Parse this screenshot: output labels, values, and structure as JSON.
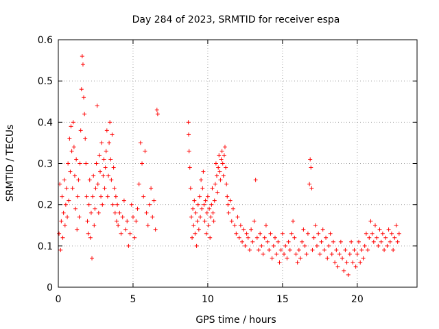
{
  "chart_data": {
    "type": "scatter",
    "title": "Day 284 of 2023, SRMTID for receiver espa",
    "xlabel": "GPS time / hours",
    "ylabel": "SRMTID / TECUs",
    "xlim": [
      0,
      24
    ],
    "ylim": [
      0,
      0.6
    ],
    "x_ticks": [
      0,
      5,
      10,
      15,
      20
    ],
    "x_tick_labels": [
      "0",
      "5",
      "10",
      "15",
      "20"
    ],
    "y_ticks": [
      0,
      0.1,
      0.2,
      0.3,
      0.4,
      0.5,
      0.6
    ],
    "y_tick_labels": [
      "0",
      "0.1",
      "0.2",
      "0.3",
      "0.4",
      "0.5",
      "0.6"
    ],
    "grid": true,
    "marker": "+",
    "color": "#ff0000",
    "series": [
      {
        "name": "SRMTID",
        "points": [
          [
            0.05,
            0.13
          ],
          [
            0.1,
            0.25
          ],
          [
            0.15,
            0.09
          ],
          [
            0.2,
            0.16
          ],
          [
            0.25,
            0.22
          ],
          [
            0.3,
            0.12
          ],
          [
            0.35,
            0.18
          ],
          [
            0.4,
            0.26
          ],
          [
            0.45,
            0.15
          ],
          [
            0.5,
            0.2
          ],
          [
            0.55,
            0.24
          ],
          [
            0.6,
            0.17
          ],
          [
            0.65,
            0.3
          ],
          [
            0.7,
            0.21
          ],
          [
            0.75,
            0.36
          ],
          [
            0.8,
            0.28
          ],
          [
            0.85,
            0.39
          ],
          [
            0.9,
            0.33
          ],
          [
            0.95,
            0.24
          ],
          [
            1.0,
            0.4
          ],
          [
            1.05,
            0.34
          ],
          [
            1.1,
            0.27
          ],
          [
            1.15,
            0.19
          ],
          [
            1.2,
            0.31
          ],
          [
            1.25,
            0.14
          ],
          [
            1.3,
            0.22
          ],
          [
            1.35,
            0.26
          ],
          [
            1.4,
            0.17
          ],
          [
            1.45,
            0.3
          ],
          [
            1.5,
            0.38
          ],
          [
            1.55,
            0.48
          ],
          [
            1.6,
            0.56
          ],
          [
            1.65,
            0.54
          ],
          [
            1.7,
            0.46
          ],
          [
            1.75,
            0.42
          ],
          [
            1.8,
            0.36
          ],
          [
            1.85,
            0.3
          ],
          [
            1.9,
            0.22
          ],
          [
            1.95,
            0.16
          ],
          [
            2.0,
            0.13
          ],
          [
            2.05,
            0.2
          ],
          [
            2.1,
            0.26
          ],
          [
            2.15,
            0.12
          ],
          [
            2.2,
            0.18
          ],
          [
            2.25,
            0.07
          ],
          [
            2.3,
            0.22
          ],
          [
            2.35,
            0.27
          ],
          [
            2.4,
            0.15
          ],
          [
            2.45,
            0.19
          ],
          [
            2.5,
            0.24
          ],
          [
            2.55,
            0.3
          ],
          [
            2.6,
            0.44
          ],
          [
            2.65,
            0.25
          ],
          [
            2.7,
            0.18
          ],
          [
            2.75,
            0.32
          ],
          [
            2.8,
            0.28
          ],
          [
            2.85,
            0.22
          ],
          [
            2.9,
            0.35
          ],
          [
            2.95,
            0.2
          ],
          [
            3.0,
            0.27
          ],
          [
            3.05,
            0.31
          ],
          [
            3.1,
            0.24
          ],
          [
            3.15,
            0.29
          ],
          [
            3.2,
            0.33
          ],
          [
            3.25,
            0.38
          ],
          [
            3.3,
            0.22
          ],
          [
            3.35,
            0.27
          ],
          [
            3.4,
            0.35
          ],
          [
            3.45,
            0.4
          ],
          [
            3.5,
            0.31
          ],
          [
            3.55,
            0.26
          ],
          [
            3.6,
            0.37
          ],
          [
            3.65,
            0.2
          ],
          [
            3.7,
            0.29
          ],
          [
            3.75,
            0.24
          ],
          [
            3.8,
            0.18
          ],
          [
            3.85,
            0.22
          ],
          [
            3.9,
            0.16
          ],
          [
            3.95,
            0.2
          ],
          [
            4.0,
            0.15
          ],
          [
            4.1,
            0.18
          ],
          [
            4.2,
            0.13
          ],
          [
            4.3,
            0.17
          ],
          [
            4.4,
            0.21
          ],
          [
            4.5,
            0.14
          ],
          [
            4.6,
            0.16
          ],
          [
            4.7,
            0.1
          ],
          [
            4.8,
            0.13
          ],
          [
            4.9,
            0.2
          ],
          [
            5.0,
            0.17
          ],
          [
            5.1,
            0.12
          ],
          [
            5.2,
            0.16
          ],
          [
            5.3,
            0.19
          ],
          [
            5.4,
            0.25
          ],
          [
            5.5,
            0.35
          ],
          [
            5.6,
            0.3
          ],
          [
            5.7,
            0.22
          ],
          [
            5.8,
            0.33
          ],
          [
            5.9,
            0.18
          ],
          [
            6.0,
            0.15
          ],
          [
            6.1,
            0.2
          ],
          [
            6.2,
            0.24
          ],
          [
            6.3,
            0.17
          ],
          [
            6.4,
            0.21
          ],
          [
            6.5,
            0.14
          ],
          [
            6.6,
            0.43
          ],
          [
            6.65,
            0.42
          ],
          [
            8.7,
            0.4
          ],
          [
            8.72,
            0.37
          ],
          [
            8.75,
            0.33
          ],
          [
            8.8,
            0.29
          ],
          [
            8.85,
            0.24
          ],
          [
            8.9,
            0.17
          ],
          [
            8.95,
            0.12
          ],
          [
            9.0,
            0.19
          ],
          [
            9.05,
            0.15
          ],
          [
            9.1,
            0.21
          ],
          [
            9.15,
            0.13
          ],
          [
            9.2,
            0.18
          ],
          [
            9.25,
            0.1
          ],
          [
            9.3,
            0.16
          ],
          [
            9.35,
            0.2
          ],
          [
            9.4,
            0.14
          ],
          [
            9.45,
            0.22
          ],
          [
            9.5,
            0.17
          ],
          [
            9.55,
            0.26
          ],
          [
            9.6,
            0.19
          ],
          [
            9.65,
            0.24
          ],
          [
            9.7,
            0.28
          ],
          [
            9.75,
            0.2
          ],
          [
            9.8,
            0.16
          ],
          [
            9.85,
            0.21
          ],
          [
            9.9,
            0.13
          ],
          [
            9.95,
            0.18
          ],
          [
            10.0,
            0.22
          ],
          [
            10.05,
            0.15
          ],
          [
            10.1,
            0.19
          ],
          [
            10.15,
            0.12
          ],
          [
            10.2,
            0.17
          ],
          [
            10.25,
            0.2
          ],
          [
            10.3,
            0.24
          ],
          [
            10.35,
            0.18
          ],
          [
            10.4,
            0.16
          ],
          [
            10.45,
            0.21
          ],
          [
            10.5,
            0.25
          ],
          [
            10.55,
            0.3
          ],
          [
            10.6,
            0.27
          ],
          [
            10.65,
            0.23
          ],
          [
            10.7,
            0.29
          ],
          [
            10.75,
            0.32
          ],
          [
            10.8,
            0.28
          ],
          [
            10.85,
            0.26
          ],
          [
            10.9,
            0.31
          ],
          [
            10.95,
            0.33
          ],
          [
            11.0,
            0.3
          ],
          [
            11.05,
            0.27
          ],
          [
            11.1,
            0.32
          ],
          [
            11.15,
            0.34
          ],
          [
            11.2,
            0.29
          ],
          [
            11.25,
            0.25
          ],
          [
            11.3,
            0.22
          ],
          [
            11.35,
            0.2
          ],
          [
            11.4,
            0.18
          ],
          [
            11.5,
            0.21
          ],
          [
            11.6,
            0.16
          ],
          [
            11.7,
            0.19
          ],
          [
            11.8,
            0.15
          ],
          [
            11.9,
            0.13
          ],
          [
            12.0,
            0.17
          ],
          [
            12.1,
            0.12
          ],
          [
            12.2,
            0.15
          ],
          [
            12.3,
            0.11
          ],
          [
            12.4,
            0.14
          ],
          [
            12.5,
            0.1
          ],
          [
            12.6,
            0.13
          ],
          [
            12.7,
            0.12
          ],
          [
            12.8,
            0.09
          ],
          [
            12.9,
            0.14
          ],
          [
            13.0,
            0.11
          ],
          [
            13.1,
            0.16
          ],
          [
            13.2,
            0.26
          ],
          [
            13.3,
            0.12
          ],
          [
            13.4,
            0.09
          ],
          [
            13.5,
            0.13
          ],
          [
            13.6,
            0.1
          ],
          [
            13.7,
            0.08
          ],
          [
            13.8,
            0.12
          ],
          [
            13.9,
            0.15
          ],
          [
            14.0,
            0.11
          ],
          [
            14.1,
            0.09
          ],
          [
            14.2,
            0.13
          ],
          [
            14.3,
            0.07
          ],
          [
            14.4,
            0.1
          ],
          [
            14.5,
            0.12
          ],
          [
            14.6,
            0.08
          ],
          [
            14.7,
            0.11
          ],
          [
            14.8,
            0.06
          ],
          [
            14.9,
            0.09
          ],
          [
            15.0,
            0.13
          ],
          [
            15.1,
            0.08
          ],
          [
            15.2,
            0.1
          ],
          [
            15.3,
            0.07
          ],
          [
            15.4,
            0.11
          ],
          [
            15.5,
            0.09
          ],
          [
            15.6,
            0.13
          ],
          [
            15.7,
            0.16
          ],
          [
            15.8,
            0.12
          ],
          [
            15.9,
            0.08
          ],
          [
            16.0,
            0.06
          ],
          [
            16.1,
            0.09
          ],
          [
            16.2,
            0.07
          ],
          [
            16.3,
            0.11
          ],
          [
            16.4,
            0.14
          ],
          [
            16.5,
            0.1
          ],
          [
            16.6,
            0.08
          ],
          [
            16.7,
            0.13
          ],
          [
            16.8,
            0.25
          ],
          [
            16.85,
            0.31
          ],
          [
            16.9,
            0.29
          ],
          [
            16.95,
            0.24
          ],
          [
            17.0,
            0.09
          ],
          [
            17.1,
            0.12
          ],
          [
            17.2,
            0.15
          ],
          [
            17.3,
            0.1
          ],
          [
            17.4,
            0.13
          ],
          [
            17.5,
            0.08
          ],
          [
            17.6,
            0.11
          ],
          [
            17.7,
            0.14
          ],
          [
            17.8,
            0.09
          ],
          [
            17.9,
            0.12
          ],
          [
            18.0,
            0.07
          ],
          [
            18.1,
            0.1
          ],
          [
            18.2,
            0.13
          ],
          [
            18.3,
            0.08
          ],
          [
            18.4,
            0.11
          ],
          [
            18.5,
            0.06
          ],
          [
            18.6,
            0.09
          ],
          [
            18.7,
            0.05
          ],
          [
            18.8,
            0.08
          ],
          [
            18.9,
            0.11
          ],
          [
            19.0,
            0.07
          ],
          [
            19.1,
            0.04
          ],
          [
            19.2,
            0.09
          ],
          [
            19.3,
            0.06
          ],
          [
            19.4,
            0.03
          ],
          [
            19.5,
            0.08
          ],
          [
            19.6,
            0.11
          ],
          [
            19.7,
            0.06
          ],
          [
            19.8,
            0.09
          ],
          [
            19.9,
            0.05
          ],
          [
            20.0,
            0.08
          ],
          [
            20.1,
            0.11
          ],
          [
            20.2,
            0.06
          ],
          [
            20.3,
            0.09
          ],
          [
            20.4,
            0.07
          ],
          [
            20.5,
            0.1
          ],
          [
            20.6,
            0.13
          ],
          [
            20.7,
            0.09
          ],
          [
            20.8,
            0.12
          ],
          [
            20.9,
            0.16
          ],
          [
            21.0,
            0.13
          ],
          [
            21.1,
            0.11
          ],
          [
            21.2,
            0.15
          ],
          [
            21.3,
            0.12
          ],
          [
            21.4,
            0.1
          ],
          [
            21.5,
            0.14
          ],
          [
            21.6,
            0.11
          ],
          [
            21.7,
            0.13
          ],
          [
            21.8,
            0.09
          ],
          [
            21.9,
            0.12
          ],
          [
            22.0,
            0.1
          ],
          [
            22.1,
            0.14
          ],
          [
            22.2,
            0.11
          ],
          [
            22.3,
            0.13
          ],
          [
            22.4,
            0.09
          ],
          [
            22.5,
            0.12
          ],
          [
            22.6,
            0.15
          ],
          [
            22.7,
            0.11
          ],
          [
            22.8,
            0.13
          ]
        ]
      }
    ]
  }
}
